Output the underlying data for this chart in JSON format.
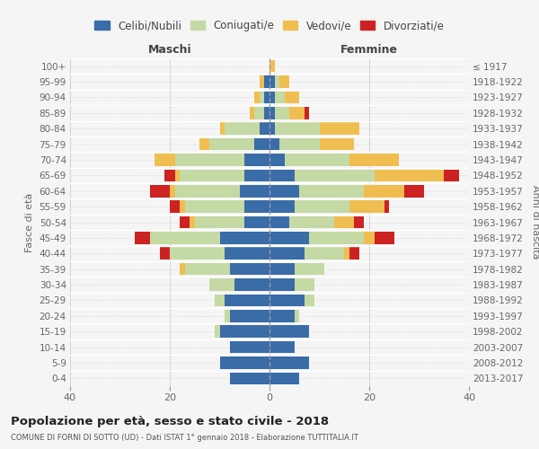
{
  "age_groups": [
    "100+",
    "95-99",
    "90-94",
    "85-89",
    "80-84",
    "75-79",
    "70-74",
    "65-69",
    "60-64",
    "55-59",
    "50-54",
    "45-49",
    "40-44",
    "35-39",
    "30-34",
    "25-29",
    "20-24",
    "15-19",
    "10-14",
    "5-9",
    "0-4"
  ],
  "birth_years": [
    "≤ 1917",
    "1918-1922",
    "1923-1927",
    "1928-1932",
    "1933-1937",
    "1938-1942",
    "1943-1947",
    "1948-1952",
    "1953-1957",
    "1958-1962",
    "1963-1967",
    "1968-1972",
    "1973-1977",
    "1978-1982",
    "1983-1987",
    "1988-1992",
    "1993-1997",
    "1998-2002",
    "2003-2007",
    "2008-2012",
    "2013-2017"
  ],
  "colors": {
    "celibi": "#3a6ca8",
    "coniugati": "#c5d9a4",
    "vedovi": "#f0be50",
    "divorziati": "#cc2222"
  },
  "maschi": {
    "celibi": [
      0,
      1,
      1,
      1,
      2,
      3,
      5,
      5,
      6,
      5,
      5,
      10,
      9,
      8,
      7,
      9,
      8,
      10,
      8,
      10,
      8
    ],
    "coniugati": [
      0,
      0,
      1,
      2,
      7,
      9,
      14,
      13,
      13,
      12,
      10,
      14,
      11,
      9,
      5,
      2,
      1,
      1,
      0,
      0,
      0
    ],
    "vedovi": [
      0,
      1,
      1,
      1,
      1,
      2,
      4,
      1,
      1,
      1,
      1,
      0,
      0,
      1,
      0,
      0,
      0,
      0,
      0,
      0,
      0
    ],
    "divorziati": [
      0,
      0,
      0,
      0,
      0,
      0,
      0,
      2,
      4,
      2,
      2,
      3,
      2,
      0,
      0,
      0,
      0,
      0,
      0,
      0,
      0
    ]
  },
  "femmine": {
    "celibi": [
      0,
      1,
      1,
      1,
      1,
      2,
      3,
      5,
      6,
      5,
      4,
      8,
      7,
      5,
      5,
      7,
      5,
      8,
      5,
      8,
      6
    ],
    "coniugati": [
      0,
      1,
      2,
      3,
      9,
      8,
      13,
      16,
      13,
      11,
      9,
      11,
      8,
      6,
      4,
      2,
      1,
      0,
      0,
      0,
      0
    ],
    "vedovi": [
      1,
      2,
      3,
      3,
      8,
      7,
      10,
      14,
      8,
      7,
      4,
      2,
      1,
      0,
      0,
      0,
      0,
      0,
      0,
      0,
      0
    ],
    "divorziati": [
      0,
      0,
      0,
      1,
      0,
      0,
      0,
      3,
      4,
      1,
      2,
      4,
      2,
      0,
      0,
      0,
      0,
      0,
      0,
      0,
      0
    ]
  },
  "xlim": 40,
  "title": "Popolazione per età, sesso e stato civile - 2018",
  "subtitle": "COMUNE DI FORNI DI SOTTO (UD) - Dati ISTAT 1° gennaio 2018 - Elaborazione TUTTITALIA.IT",
  "ylabel_left": "Fasce di età",
  "ylabel_right": "Anni di nascita",
  "xlabel_left": "Maschi",
  "xlabel_right": "Femmine",
  "bg_color": "#f5f5f5",
  "grid_color": "#cccccc"
}
